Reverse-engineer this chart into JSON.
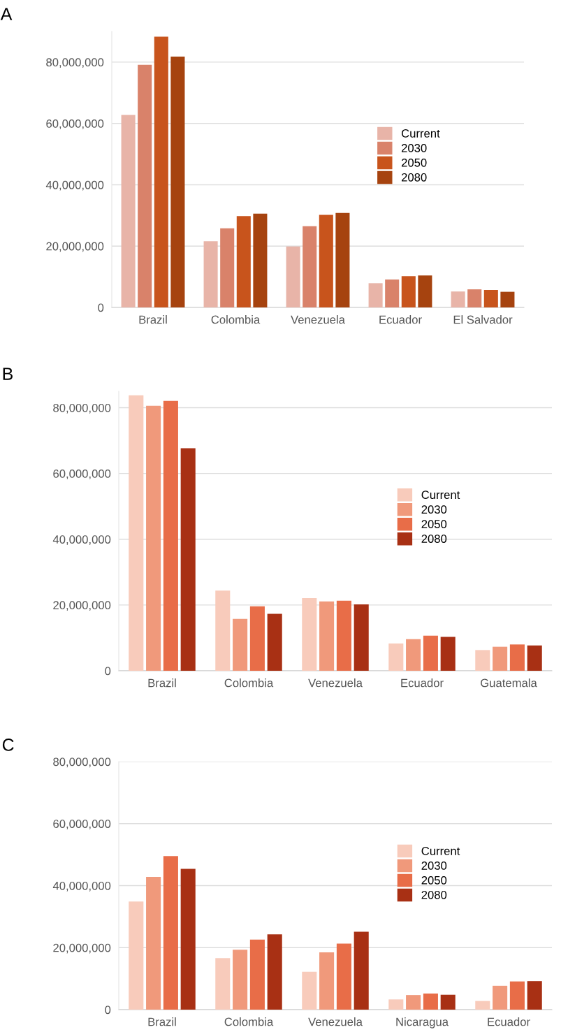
{
  "chart_data": [
    {
      "type": "bar",
      "title": "A",
      "categories": [
        "Brazil",
        "Colombia",
        "Venezuela",
        "Ecuador",
        "El Salvador"
      ],
      "series": [
        {
          "name": "Current",
          "color": "#e8b4a8",
          "values": [
            62800000,
            21600000,
            19900000,
            7900000,
            5200000
          ]
        },
        {
          "name": "2030",
          "color": "#d9826a",
          "values": [
            79100000,
            25800000,
            26500000,
            9100000,
            5900000
          ]
        },
        {
          "name": "2050",
          "color": "#c8541c",
          "values": [
            88300000,
            29800000,
            30200000,
            10200000,
            5700000
          ]
        },
        {
          "name": "2080",
          "color": "#a6430f",
          "values": [
            81800000,
            30600000,
            30800000,
            10400000,
            5100000
          ]
        }
      ],
      "ylim": [
        0,
        90000000
      ],
      "yticks": [
        0,
        {
          "value": 20000000,
          "label": "20,000,000"
        },
        {
          "value": 40000000,
          "label": "40,000,000"
        },
        {
          "value": 60000000,
          "label": "60,000,000"
        },
        {
          "value": 80000000,
          "label": "80,000,000"
        }
      ],
      "grid": "y",
      "legend": "right"
    },
    {
      "type": "bar",
      "title": "B",
      "categories": [
        "Brazil",
        "Colombia",
        "Venezuela",
        "Ecuador",
        "Guatemala"
      ],
      "series": [
        {
          "name": "Current",
          "color": "#f8cbbb",
          "values": [
            83800000,
            24400000,
            22100000,
            8300000,
            6300000
          ]
        },
        {
          "name": "2030",
          "color": "#f0997b",
          "values": [
            80600000,
            15800000,
            21100000,
            9600000,
            7300000
          ]
        },
        {
          "name": "2050",
          "color": "#e86d48",
          "values": [
            82100000,
            19600000,
            21300000,
            10700000,
            8000000
          ]
        },
        {
          "name": "2080",
          "color": "#a83014",
          "values": [
            67700000,
            17300000,
            20200000,
            10300000,
            7700000
          ]
        }
      ],
      "ylim": [
        0,
        85000000
      ],
      "yticks": [
        0,
        {
          "value": 20000000,
          "label": "20,000,000"
        },
        {
          "value": 40000000,
          "label": "40,000,000"
        },
        {
          "value": 60000000,
          "label": "60,000,000"
        },
        {
          "value": 80000000,
          "label": "80,000,000"
        }
      ],
      "grid": "y",
      "legend": "right"
    },
    {
      "type": "bar",
      "title": "C",
      "categories": [
        "Brazil",
        "Colombia",
        "Venezuela",
        "Nicaragua",
        "Ecuador"
      ],
      "series": [
        {
          "name": "Current",
          "color": "#f8cbbb",
          "values": [
            34900000,
            16600000,
            12200000,
            3300000,
            2800000
          ]
        },
        {
          "name": "2030",
          "color": "#f0997b",
          "values": [
            42800000,
            19300000,
            18500000,
            4700000,
            7700000
          ]
        },
        {
          "name": "2050",
          "color": "#e86d48",
          "values": [
            49500000,
            22600000,
            21300000,
            5200000,
            9100000
          ]
        },
        {
          "name": "2080",
          "color": "#a83014",
          "values": [
            45400000,
            24300000,
            25100000,
            4800000,
            9200000
          ]
        }
      ],
      "ylim": [
        0,
        80000000
      ],
      "yticks": [
        0,
        {
          "value": 20000000,
          "label": "20,000,000"
        },
        {
          "value": 40000000,
          "label": "40,000,000"
        },
        {
          "value": 60000000,
          "label": "60,000,000"
        },
        {
          "value": 80000000,
          "label": "80,000,000"
        }
      ],
      "grid": "y",
      "legend": "right"
    }
  ]
}
